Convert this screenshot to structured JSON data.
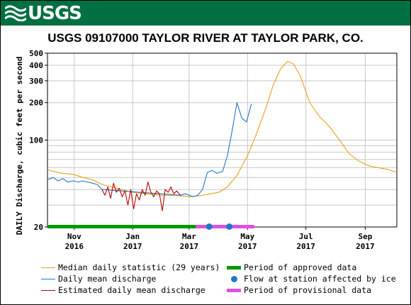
{
  "header": {
    "logo_text": "USGS",
    "logo_icon": "usgs-wave-icon",
    "brand_color": "#006f41"
  },
  "chart_data": {
    "type": "line",
    "title": "USGS 09107000 TAYLOR RIVER AT TAYLOR PARK, CO.",
    "ylabel": "DAILY Discharge, cubic feet per second",
    "xlabel": "",
    "y_scale": "log",
    "ylim": [
      20,
      500
    ],
    "xlim": [
      "2016-10-04",
      "2017-10-04"
    ],
    "grid": true,
    "y_ticks": [
      {
        "value": 20,
        "label": "20"
      },
      {
        "value": 100,
        "label": "100"
      },
      {
        "value": 200,
        "label": "200"
      },
      {
        "value": 300,
        "label": "300"
      },
      {
        "value": 400,
        "label": "400"
      },
      {
        "value": 500,
        "label": "500"
      }
    ],
    "x_ticks": [
      {
        "date": "2016-11-01",
        "label": "Nov",
        "year": "2016"
      },
      {
        "date": "2017-01-01",
        "label": "Jan",
        "year": "2017"
      },
      {
        "date": "2017-03-01",
        "label": "Mar",
        "year": "2017"
      },
      {
        "date": "2017-05-01",
        "label": "May",
        "year": "2017"
      },
      {
        "date": "2017-07-01",
        "label": "Jul",
        "year": "2017"
      },
      {
        "date": "2017-09-01",
        "label": "Sep",
        "year": "2017"
      }
    ],
    "series": [
      {
        "name": "Median daily statistic (29 years)",
        "color": "#e8a317",
        "points": [
          [
            "2016-10-04",
            58
          ],
          [
            "2016-10-10",
            56
          ],
          [
            "2016-10-20",
            54
          ],
          [
            "2016-10-31",
            53
          ],
          [
            "2016-11-10",
            50
          ],
          [
            "2016-11-20",
            48
          ],
          [
            "2016-11-30",
            44
          ],
          [
            "2016-12-10",
            42
          ],
          [
            "2016-12-20",
            40
          ],
          [
            "2017-01-01",
            38
          ],
          [
            "2017-01-15",
            37
          ],
          [
            "2017-02-01",
            36
          ],
          [
            "2017-02-15",
            36
          ],
          [
            "2017-03-01",
            35
          ],
          [
            "2017-03-15",
            36
          ],
          [
            "2017-04-01",
            38
          ],
          [
            "2017-04-10",
            42
          ],
          [
            "2017-04-20",
            52
          ],
          [
            "2017-05-01",
            75
          ],
          [
            "2017-05-10",
            110
          ],
          [
            "2017-05-20",
            180
          ],
          [
            "2017-05-28",
            280
          ],
          [
            "2017-06-05",
            380
          ],
          [
            "2017-06-12",
            430
          ],
          [
            "2017-06-18",
            410
          ],
          [
            "2017-06-25",
            330
          ],
          [
            "2017-07-05",
            200
          ],
          [
            "2017-07-15",
            155
          ],
          [
            "2017-07-25",
            130
          ],
          [
            "2017-08-05",
            100
          ],
          [
            "2017-08-15",
            78
          ],
          [
            "2017-08-25",
            68
          ],
          [
            "2017-09-05",
            62
          ],
          [
            "2017-09-15",
            60
          ],
          [
            "2017-09-25",
            58
          ],
          [
            "2017-10-04",
            55
          ]
        ]
      },
      {
        "name": "Daily mean discharge",
        "color": "#1f78c8",
        "points": [
          [
            "2016-10-04",
            48
          ],
          [
            "2016-10-10",
            50
          ],
          [
            "2016-10-15",
            47
          ],
          [
            "2016-10-20",
            49
          ],
          [
            "2016-10-25",
            46
          ],
          [
            "2016-10-31",
            47
          ],
          [
            "2016-11-05",
            46
          ],
          [
            "2016-11-10",
            47
          ],
          [
            "2016-11-15",
            46
          ],
          [
            "2016-11-20",
            45
          ],
          [
            "2016-11-25",
            44
          ],
          [
            "2016-11-30",
            40
          ],
          [
            "2017-02-20",
            36
          ],
          [
            "2017-02-25",
            37
          ],
          [
            "2017-03-01",
            36
          ],
          [
            "2017-03-05",
            35
          ],
          [
            "2017-03-10",
            36
          ],
          [
            "2017-03-15",
            40
          ],
          [
            "2017-03-20",
            55
          ],
          [
            "2017-03-25",
            57
          ],
          [
            "2017-03-30",
            54
          ],
          [
            "2017-04-05",
            56
          ],
          [
            "2017-04-10",
            75
          ],
          [
            "2017-04-15",
            120
          ],
          [
            "2017-04-20",
            200
          ],
          [
            "2017-04-25",
            150
          ],
          [
            "2017-04-30",
            140
          ],
          [
            "2017-05-05",
            195
          ]
        ]
      },
      {
        "name": "Estimated daily mean discharge",
        "color": "#c00000",
        "points": [
          [
            "2016-11-30",
            40
          ],
          [
            "2016-12-03",
            36
          ],
          [
            "2016-12-06",
            42
          ],
          [
            "2016-12-09",
            34
          ],
          [
            "2016-12-12",
            45
          ],
          [
            "2016-12-15",
            38
          ],
          [
            "2016-12-18",
            41
          ],
          [
            "2016-12-21",
            35
          ],
          [
            "2016-12-24",
            39
          ],
          [
            "2016-12-27",
            30
          ],
          [
            "2016-12-30",
            40
          ],
          [
            "2017-01-02",
            28
          ],
          [
            "2017-01-05",
            37
          ],
          [
            "2017-01-08",
            33
          ],
          [
            "2017-01-11",
            40
          ],
          [
            "2017-01-14",
            36
          ],
          [
            "2017-01-17",
            46
          ],
          [
            "2017-01-20",
            38
          ],
          [
            "2017-01-23",
            35
          ],
          [
            "2017-01-26",
            39
          ],
          [
            "2017-01-29",
            37
          ],
          [
            "2017-02-01",
            27
          ],
          [
            "2017-02-04",
            40
          ],
          [
            "2017-02-07",
            38
          ],
          [
            "2017-02-10",
            42
          ],
          [
            "2017-02-13",
            37
          ],
          [
            "2017-02-16",
            39
          ],
          [
            "2017-02-20",
            36
          ]
        ]
      }
    ],
    "periods": [
      {
        "name": "Period of approved data",
        "color": "#009900",
        "start": "2016-10-04",
        "end": "2017-03-08"
      },
      {
        "name": "Period of provisional data",
        "color": "#e050e0",
        "start": "2017-03-08",
        "end": "2017-05-08"
      }
    ],
    "ice_points": {
      "name": "Flow at station affected by ice",
      "color": "#1f78c8",
      "dates": [
        "2017-03-22",
        "2017-04-12"
      ]
    }
  },
  "legend": {
    "median_label": "Median daily statistic (29 years)",
    "daily_label": "Daily mean discharge",
    "estimated_label": "Estimated daily mean discharge",
    "approved_label": "Period of approved data",
    "ice_label": "Flow at station affected by ice",
    "provisional_label": "Period of provisional data"
  }
}
